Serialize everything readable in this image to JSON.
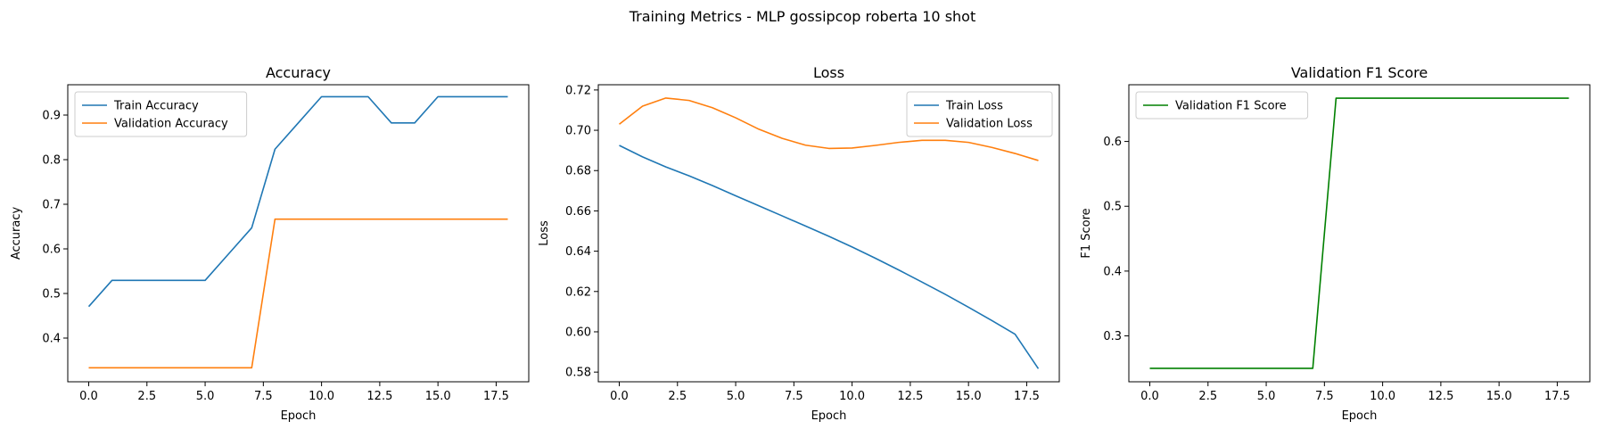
{
  "figure": {
    "suptitle": "Training Metrics - MLP gossipcop roberta 10 shot"
  },
  "chart_data": [
    {
      "type": "line",
      "title": "Accuracy",
      "xlabel": "Epoch",
      "ylabel": "Accuracy",
      "x": [
        0,
        1,
        2,
        3,
        4,
        5,
        6,
        7,
        8,
        9,
        10,
        11,
        12,
        13,
        14,
        15,
        16,
        17,
        18
      ],
      "xlim": [
        -0.9,
        18.9
      ],
      "ylim": [
        0.302,
        0.968
      ],
      "xticks": [
        0,
        2.5,
        5,
        7.5,
        10,
        12.5,
        15,
        17.5
      ],
      "xtick_labels": [
        "0.0",
        "2.5",
        "5.0",
        "7.5",
        "10.0",
        "12.5",
        "15.0",
        "17.5"
      ],
      "yticks": [
        0.4,
        0.5,
        0.6,
        0.7,
        0.8,
        0.9
      ],
      "ytick_labels": [
        "0.4",
        "0.5",
        "0.6",
        "0.7",
        "0.8",
        "0.9"
      ],
      "grid": false,
      "legend_loc": "upper left",
      "series": [
        {
          "name": "Train Accuracy",
          "color": "#1f77b4",
          "values": [
            0.4706,
            0.5294,
            0.5294,
            0.5294,
            0.5294,
            0.5294,
            0.5882,
            0.6471,
            0.8235,
            0.8824,
            0.9412,
            0.9412,
            0.9412,
            0.8824,
            0.8824,
            0.9412,
            0.9412,
            0.9412,
            0.9412
          ]
        },
        {
          "name": "Validation Accuracy",
          "color": "#ff7f0e",
          "values": [
            0.3333,
            0.3333,
            0.3333,
            0.3333,
            0.3333,
            0.3333,
            0.3333,
            0.3333,
            0.6667,
            0.6667,
            0.6667,
            0.6667,
            0.6667,
            0.6667,
            0.6667,
            0.6667,
            0.6667,
            0.6667,
            0.6667
          ]
        }
      ]
    },
    {
      "type": "line",
      "title": "Loss",
      "xlabel": "Epoch",
      "ylabel": "Loss",
      "x": [
        0,
        1,
        2,
        3,
        4,
        5,
        6,
        7,
        8,
        9,
        10,
        11,
        12,
        13,
        14,
        15,
        16,
        17,
        18
      ],
      "xlim": [
        -0.9,
        18.9
      ],
      "ylim": [
        0.5752,
        0.7226
      ],
      "xticks": [
        0,
        2.5,
        5,
        7.5,
        10,
        12.5,
        15,
        17.5
      ],
      "xtick_labels": [
        "0.0",
        "2.5",
        "5.0",
        "7.5",
        "10.0",
        "12.5",
        "15.0",
        "17.5"
      ],
      "yticks": [
        0.58,
        0.6,
        0.62,
        0.64,
        0.66,
        0.68,
        0.7,
        0.72
      ],
      "ytick_labels": [
        "0.58",
        "0.60",
        "0.62",
        "0.64",
        "0.66",
        "0.68",
        "0.70",
        "0.72"
      ],
      "grid": false,
      "legend_loc": "upper right",
      "series": [
        {
          "name": "Train Loss",
          "color": "#1f77b4",
          "values": [
            0.6925,
            0.6868,
            0.6818,
            0.6774,
            0.6726,
            0.6675,
            0.6625,
            0.6575,
            0.6525,
            0.6474,
            0.6421,
            0.6365,
            0.6307,
            0.6247,
            0.6186,
            0.6122,
            0.6056,
            0.5988,
            0.5817
          ]
        },
        {
          "name": "Validation Loss",
          "color": "#ff7f0e",
          "values": [
            0.703,
            0.712,
            0.716,
            0.7148,
            0.7112,
            0.7062,
            0.7005,
            0.696,
            0.6926,
            0.691,
            0.6912,
            0.6925,
            0.694,
            0.695,
            0.695,
            0.694,
            0.6915,
            0.6885,
            0.685
          ]
        }
      ]
    },
    {
      "type": "line",
      "title": "Validation F1 Score",
      "xlabel": "Epoch",
      "ylabel": "F1 Score",
      "x": [
        0,
        1,
        2,
        3,
        4,
        5,
        6,
        7,
        8,
        9,
        10,
        11,
        12,
        13,
        14,
        15,
        16,
        17,
        18
      ],
      "xlim": [
        -0.9,
        18.9
      ],
      "ylim": [
        0.2292,
        0.6875
      ],
      "xticks": [
        0,
        2.5,
        5,
        7.5,
        10,
        12.5,
        15,
        17.5
      ],
      "xtick_labels": [
        "0.0",
        "2.5",
        "5.0",
        "7.5",
        "10.0",
        "12.5",
        "15.0",
        "17.5"
      ],
      "yticks": [
        0.3,
        0.4,
        0.5,
        0.6
      ],
      "ytick_labels": [
        "0.3",
        "0.4",
        "0.5",
        "0.6"
      ],
      "grid": false,
      "legend_loc": "upper left",
      "series": [
        {
          "name": "Validation F1 Score",
          "color": "#008000",
          "values": [
            0.25,
            0.25,
            0.25,
            0.25,
            0.25,
            0.25,
            0.25,
            0.25,
            0.6667,
            0.6667,
            0.6667,
            0.6667,
            0.6667,
            0.6667,
            0.6667,
            0.6667,
            0.6667,
            0.6667,
            0.6667
          ]
        }
      ]
    }
  ]
}
